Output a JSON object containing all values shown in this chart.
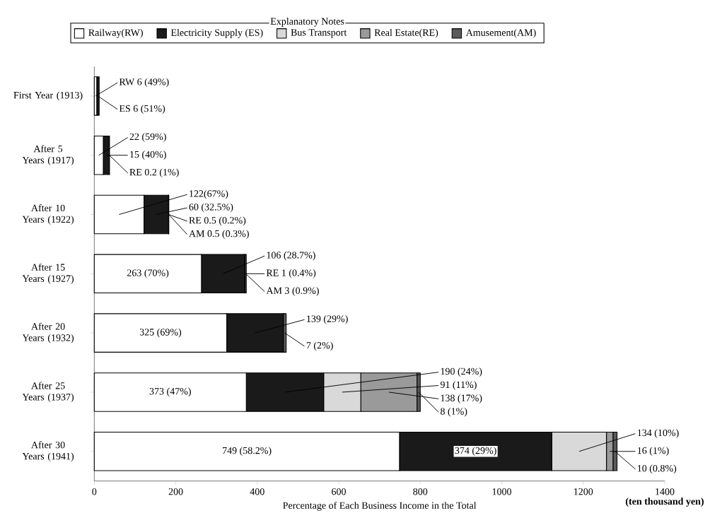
{
  "chart_data": {
    "type": "bar",
    "orientation": "horizontal",
    "stacked": true,
    "xlabel": "Percentage of Each Business Income in the Total",
    "legend_title": "Explanatory Notes",
    "legend": "top",
    "categories": [
      "First Year (1913)",
      "After 5 Years (1917)",
      "After 10 Years (1922)",
      "After 15 Years (1927)",
      "After 20 Years (1932)",
      "After 25 Years (1937)",
      "After 30 Years (1941)"
    ],
    "series": [
      {
        "name": "Railway(RW)",
        "color": "#ffffff",
        "values": [
          6,
          22,
          122,
          263,
          325,
          373,
          749
        ],
        "value_labels": [
          "RW 6 (49%)",
          "22 (59%)",
          "122(67%)",
          "263 (70%)",
          "325 (69%)",
          "373 (47%)",
          "749 (58.2%)"
        ]
      },
      {
        "name": "Electricity Supply (ES)",
        "color": "#1a1a1a",
        "values": [
          6,
          15,
          60,
          106,
          139,
          190,
          374
        ],
        "value_labels": [
          "ES 6 (51%)",
          "15 (40%)",
          "60 (32.5%)",
          "106 (28.7%)",
          "139 (29%)",
          "190 (24%)",
          "374 (29%)"
        ]
      },
      {
        "name": "Bus Transport",
        "color": "#d9d9d9",
        "values": [
          0,
          0,
          0,
          0,
          0,
          91,
          134
        ],
        "value_labels": [
          null,
          null,
          null,
          null,
          null,
          "91 (11%)",
          "134 (10%)"
        ]
      },
      {
        "name": "Real Estate(RE)",
        "color": "#9a9a9a",
        "values": [
          0,
          0.2,
          0.5,
          1,
          0,
          138,
          16
        ],
        "value_labels": [
          null,
          "RE 0.2 (1%)",
          "RE 0.5 (0.2%)",
          "RE 1 (0.4%)",
          null,
          "138 (17%)",
          "16 (1%)"
        ]
      },
      {
        "name": "Amusement(AM)",
        "color": "#5a5a5a",
        "values": [
          0,
          0,
          0.5,
          3,
          7,
          8,
          10
        ],
        "value_labels": [
          null,
          null,
          "AM 0.5 (0.3%)",
          "AM 3 (0.9%)",
          "7 (2%)",
          "8 (1%)",
          "10 (0.8%)"
        ]
      }
    ],
    "xlim": [
      0,
      1400
    ],
    "xticks": [
      0,
      200,
      400,
      600,
      800,
      1000,
      1200,
      1400
    ],
    "annotations": [
      "(ten thousand yen)"
    ]
  }
}
